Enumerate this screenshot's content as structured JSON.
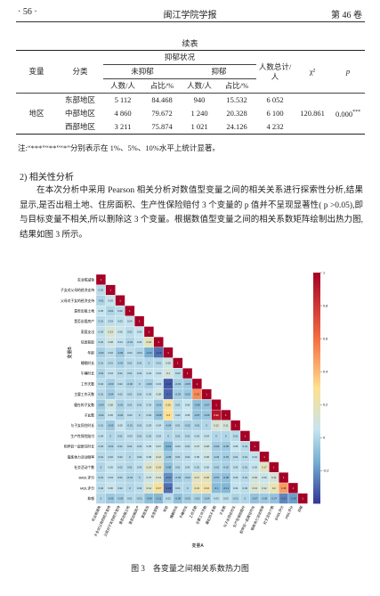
{
  "header": {
    "page": "· 56 ·",
    "journal": "闽江学院学报",
    "volume": "第 46 卷"
  },
  "table": {
    "caption": "续表",
    "head": {
      "variable": "变量",
      "category": "分类",
      "status": "抑郁状况",
      "not_depressed": "未抑郁",
      "depressed": "抑郁",
      "count": "人数/人",
      "ratio": "占比/%",
      "total": "人数总计/人",
      "chi2": "χ²",
      "p": "p"
    },
    "variable": "地区",
    "rows": [
      [
        "东部地区",
        "5 112",
        "84.468",
        "940",
        "15.532",
        "6 052"
      ],
      [
        "中部地区",
        "4 860",
        "79.672",
        "1 240",
        "20.328",
        "6 100"
      ],
      [
        "西部地区",
        "3 211",
        "75.874",
        "1 021",
        "24.126",
        "4 232"
      ]
    ],
    "chi2": "120.861",
    "p_value": "0.000",
    "p_stars": "***",
    "note": "注:“***”“**”“*”分别表示在 1%、5%、10%水平上统计显著。"
  },
  "section": {
    "heading": "2) 相关性分析",
    "paragraph": "在本次分析中采用 Pearson 相关分析对数值型变量之间的相关关系进行探索性分析,结果显示,是否出租土地、住房面积、生产性保险赔付 3 个变量的 p 值并不呈现显著性( p >0.05),即与目标变量不相关,所以删除这 3 个变量。根据数值型变量之间的相关系数矩阵绘制出热力图,结果如图 3 所示。"
  },
  "figure": {
    "type": "heatmap",
    "caption": "图 3　各变量之间相关系数热力图",
    "xlabel": "变量A",
    "ylabel": "变量B",
    "variables": [
      "农业税减免",
      "子女对父母的经济支持",
      "父母对子女的经济支持",
      "是否出租土地",
      "是否出租房产",
      "家庭支出",
      "信息获取",
      "年龄",
      "睡眠时长",
      "午睡时长",
      "工作天数",
      "主要工作天数",
      "健在的子女数",
      "子女数",
      "与子女同住时长",
      "生产性保险赔付",
      "和伴侣一起居住时长",
      "锻炼体力活动频率",
      "社交活动个数",
      "BADL评分",
      "IADL评分",
      "抑郁"
    ],
    "matrix": [
      [
        1
      ],
      [
        0.02,
        1
      ],
      [
        -0.01,
        0.05,
        1
      ],
      [
        0.05,
        -0.01,
        0.02,
        1
      ],
      [
        0.01,
        0.03,
        0.03,
        0.04,
        1
      ],
      [
        0.03,
        0.13,
        0.06,
        0.02,
        0.05,
        1
      ],
      [
        0.02,
        0.08,
        0.04,
        -0.01,
        0.04,
        0.18,
        1
      ],
      [
        -0.03,
        0.02,
        -0.06,
        0.02,
        -0.01,
        -0.14,
        -0.28,
        1
      ],
      [
        0.01,
        0.01,
        -0.02,
        0.01,
        0.01,
        0,
        0.01,
        0.08,
        1
      ],
      [
        -0.01,
        0.04,
        0.01,
        0.01,
        0.02,
        0.04,
        0.04,
        0.1,
        0.02,
        1
      ],
      [
        0.02,
        -0.03,
        0.02,
        -0.02,
        0,
        -0.03,
        0.04,
        -0.33,
        -0.03,
        -0.05,
        1
      ],
      [
        0.01,
        -0.04,
        0.02,
        0.01,
        0.01,
        0.03,
        0.08,
        -0.3,
        -0.03,
        -0.05,
        0.52,
        1
      ],
      [
        -0.04,
        0.08,
        -0.02,
        0.01,
        0.01,
        0.03,
        -0.05,
        0.25,
        0.01,
        0.05,
        -0.08,
        -0.07,
        1
      ],
      [
        -0.02,
        0.05,
        -0.02,
        0.02,
        0,
        0.02,
        -0.08,
        0.3,
        0.02,
        0.05,
        -0.07,
        -0.06,
        0.92,
        1
      ],
      [
        0.01,
        -0.05,
        0.05,
        -0.01,
        0.01,
        0.03,
        0.04,
        -0.04,
        0.01,
        -0.02,
        -0.01,
        0,
        0.12,
        0.11,
        1
      ],
      [
        0.04,
        0,
        0.01,
        0.03,
        0.01,
        0.02,
        0.03,
        0,
        0.01,
        0.01,
        0.03,
        0.04,
        0,
        0,
        0.01,
        1
      ],
      [
        0.02,
        -0.01,
        0.01,
        0.01,
        0.02,
        0.05,
        0.07,
        -0.12,
        0.03,
        0.02,
        0.07,
        0.08,
        -0.04,
        -0.05,
        0.05,
        0.01,
        1
      ],
      [
        0.01,
        0.02,
        0.02,
        0,
        0.02,
        0.06,
        0.12,
        -0.05,
        0.01,
        0.02,
        0.05,
        0.08,
        -0.02,
        -0.03,
        0.01,
        0.01,
        0.04,
        1
      ],
      [
        0,
        0.05,
        0.02,
        0.01,
        0.03,
        0.14,
        0.19,
        -0.08,
        0.01,
        0.03,
        0.02,
        0.06,
        -0.01,
        -0.02,
        0.03,
        0.01,
        0.05,
        0.17,
        1
      ],
      [
        0.01,
        0.03,
        0.01,
        -0.01,
        0,
        0.07,
        0.13,
        -0.21,
        -0.03,
        -0.02,
        0.17,
        0.18,
        -0.07,
        -0.08,
        0.03,
        0.01,
        0.09,
        0.06,
        0.11,
        1
      ],
      [
        0.02,
        0.06,
        0.02,
        0,
        0.02,
        0.14,
        0.27,
        -0.28,
        0.01,
        0,
        0.21,
        0.24,
        -0.1,
        -0.11,
        0.04,
        0.02,
        0.13,
        0.12,
        0.2,
        0.48,
        1
      ],
      [
        0,
        -0.05,
        -0.03,
        0.01,
        -0.01,
        -0.09,
        -0.11,
        0.02,
        -0.08,
        -0.03,
        -0.02,
        -0.04,
        0.03,
        0.03,
        -0.01,
        0,
        -0.07,
        -0.05,
        -0.07,
        -0.23,
        -0.18,
        1
      ]
    ],
    "clim": [
      -0.4,
      1
    ],
    "colorscale": [
      [
        -0.4,
        "#313695"
      ],
      [
        -0.15,
        "#74add1"
      ],
      [
        0.05,
        "#c6e4ee"
      ],
      [
        0.3,
        "#fee090"
      ],
      [
        0.6,
        "#f46d43"
      ],
      [
        1,
        "#a50026"
      ]
    ],
    "colorbar_ticks": [
      1,
      0.8,
      0.6,
      0.4,
      0.2,
      0,
      -0.2
    ]
  }
}
